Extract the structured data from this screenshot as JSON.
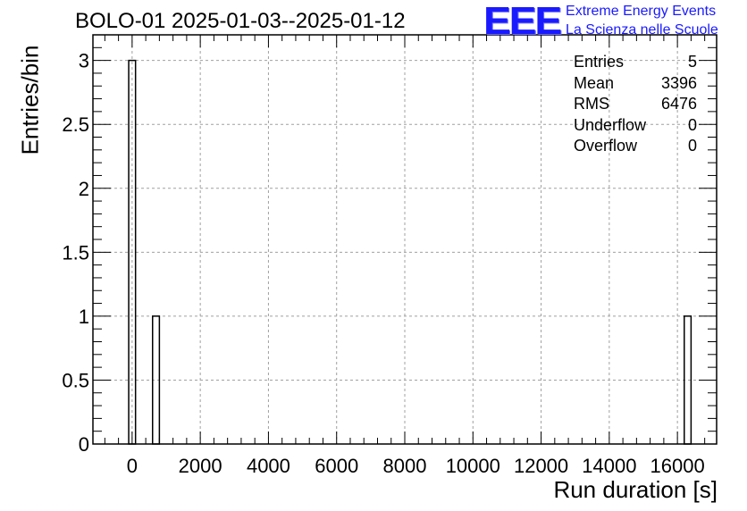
{
  "chart_data": {
    "type": "bar",
    "title": "BOLO-01 2025-01-03--2025-01-12",
    "xlabel": "Run duration [s]",
    "ylabel": "Entries/bin",
    "xlim": [
      -1150,
      17150
    ],
    "ylim": [
      0,
      3.2
    ],
    "xticks": [
      0,
      2000,
      4000,
      6000,
      8000,
      10000,
      12000,
      14000,
      16000
    ],
    "xtick_labels": [
      "0",
      "2000",
      "4000",
      "6000",
      "8000",
      "10000",
      "12000",
      "14000",
      "16000"
    ],
    "yticks": [
      0,
      0.5,
      1,
      1.5,
      2,
      2.5,
      3
    ],
    "ytick_labels": [
      "0",
      "0.5",
      "1",
      "1.5",
      "2",
      "2.5",
      "3"
    ],
    "grid": true,
    "bins": [
      {
        "low": -100,
        "high": 100,
        "value": 3
      },
      {
        "low": 600,
        "high": 800,
        "value": 1
      },
      {
        "low": 16200,
        "high": 16400,
        "value": 1
      }
    ],
    "stats": [
      {
        "label": "Entries",
        "value": "5"
      },
      {
        "label": "Mean",
        "value": "3396"
      },
      {
        "label": "RMS",
        "value": "6476"
      },
      {
        "label": "Underflow",
        "value": "0"
      },
      {
        "label": "Overflow",
        "value": "0"
      }
    ]
  },
  "logo": {
    "mark": "EEE",
    "line1": "Extreme Energy Events",
    "line2": "La Scienza nelle Scuole",
    "color": "#1a1aff"
  }
}
